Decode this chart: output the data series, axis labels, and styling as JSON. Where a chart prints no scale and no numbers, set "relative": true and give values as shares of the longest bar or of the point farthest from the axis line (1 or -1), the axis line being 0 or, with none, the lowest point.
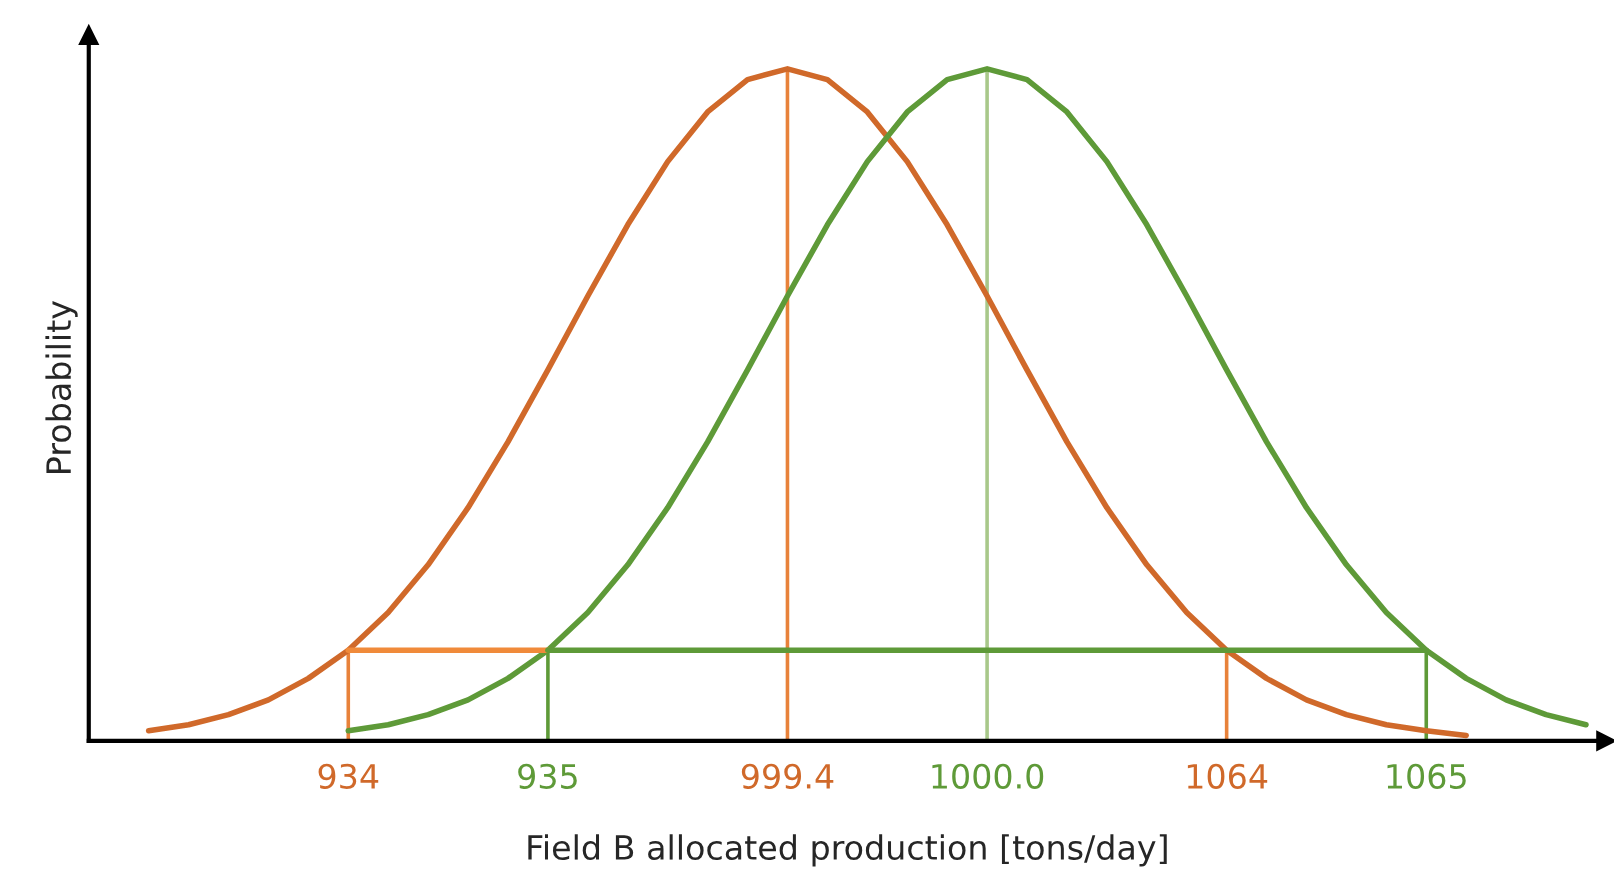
{
  "chart_data": {
    "type": "line",
    "relative": true,
    "xlabel": "Field B allocated production [tons/day]",
    "ylabel": "Probability",
    "tick_labels": "x",
    "marker": "none",
    "line_style": "solid",
    "categories": [
      null,
      null,
      null,
      null,
      null,
      null,
      "934",
      null,
      null,
      null,
      null,
      "935",
      null,
      null,
      null,
      null,
      null,
      "999.4",
      null,
      null,
      null,
      null,
      "1000.0",
      null,
      null,
      null,
      null,
      null,
      "1064",
      null,
      null,
      null,
      null,
      "1065",
      null,
      null,
      null,
      null
    ],
    "series": [
      {
        "color": "#d0692a",
        "values": [
          null,
          0.015,
          0.024,
          0.039,
          0.061,
          0.093,
          0.135,
          0.191,
          0.262,
          0.347,
          0.445,
          0.552,
          0.662,
          0.768,
          0.862,
          0.936,
          0.984,
          1.0,
          0.984,
          0.936,
          0.862,
          0.768,
          0.662,
          0.552,
          0.445,
          0.347,
          0.262,
          0.191,
          0.135,
          0.093,
          0.061,
          0.039,
          0.024,
          0.015,
          0.008,
          null,
          null,
          null
        ]
      },
      {
        "color": "#5e9a38",
        "values": [
          null,
          null,
          null,
          null,
          null,
          null,
          0.015,
          0.024,
          0.039,
          0.061,
          0.093,
          0.135,
          0.191,
          0.262,
          0.347,
          0.445,
          0.552,
          0.662,
          0.768,
          0.862,
          0.936,
          0.984,
          1.0,
          0.984,
          0.936,
          0.862,
          0.768,
          0.662,
          0.552,
          0.445,
          0.347,
          0.262,
          0.191,
          0.135,
          0.093,
          0.061,
          0.039,
          0.024
        ]
      },
      {
        "type": "bar",
        "color": "#e8823a",
        "values": [
          null,
          null,
          null,
          null,
          null,
          null,
          0.135,
          null,
          null,
          null,
          null,
          null,
          null,
          null,
          null,
          null,
          null,
          1.0,
          null,
          null,
          null,
          null,
          null,
          null,
          null,
          null,
          null,
          null,
          0.135,
          null,
          null,
          null,
          null,
          null,
          null,
          null,
          null,
          null
        ]
      },
      {
        "type": "bar",
        "color": "#a8c88a",
        "values": [
          null,
          null,
          null,
          null,
          null,
          null,
          null,
          null,
          null,
          null,
          null,
          null,
          null,
          null,
          null,
          null,
          null,
          null,
          null,
          null,
          null,
          null,
          1.0,
          null,
          null,
          null,
          null,
          null,
          null,
          null,
          null,
          null,
          null,
          null,
          null,
          null,
          null,
          null
        ]
      },
      {
        "type": "bar",
        "color": "#5e9a38",
        "values": [
          null,
          null,
          null,
          null,
          null,
          null,
          null,
          null,
          null,
          null,
          null,
          0.135,
          null,
          null,
          null,
          null,
          null,
          null,
          null,
          null,
          null,
          null,
          null,
          null,
          null,
          null,
          null,
          null,
          null,
          null,
          null,
          null,
          null,
          0.135,
          null,
          null,
          null,
          null
        ]
      },
      {
        "color": "#f08a3a",
        "values": [
          null,
          null,
          null,
          null,
          null,
          null,
          0.135,
          0.135,
          0.135,
          0.135,
          0.135,
          0.135,
          null,
          null,
          null,
          null,
          null,
          null,
          null,
          null,
          null,
          null,
          null,
          null,
          null,
          null,
          null,
          null,
          null,
          null,
          null,
          null,
          null,
          null,
          null,
          null,
          null,
          null
        ]
      },
      {
        "color": "#5e9a38",
        "values": [
          null,
          null,
          null,
          null,
          null,
          null,
          null,
          null,
          null,
          null,
          null,
          0.135,
          0.135,
          0.135,
          0.135,
          0.135,
          0.135,
          0.135,
          0.135,
          0.135,
          0.135,
          0.135,
          0.135,
          0.135,
          0.135,
          0.135,
          0.135,
          0.135,
          0.135,
          0.135,
          0.135,
          0.135,
          0.135,
          0.135,
          null,
          null,
          null,
          null
        ]
      }
    ]
  }
}
